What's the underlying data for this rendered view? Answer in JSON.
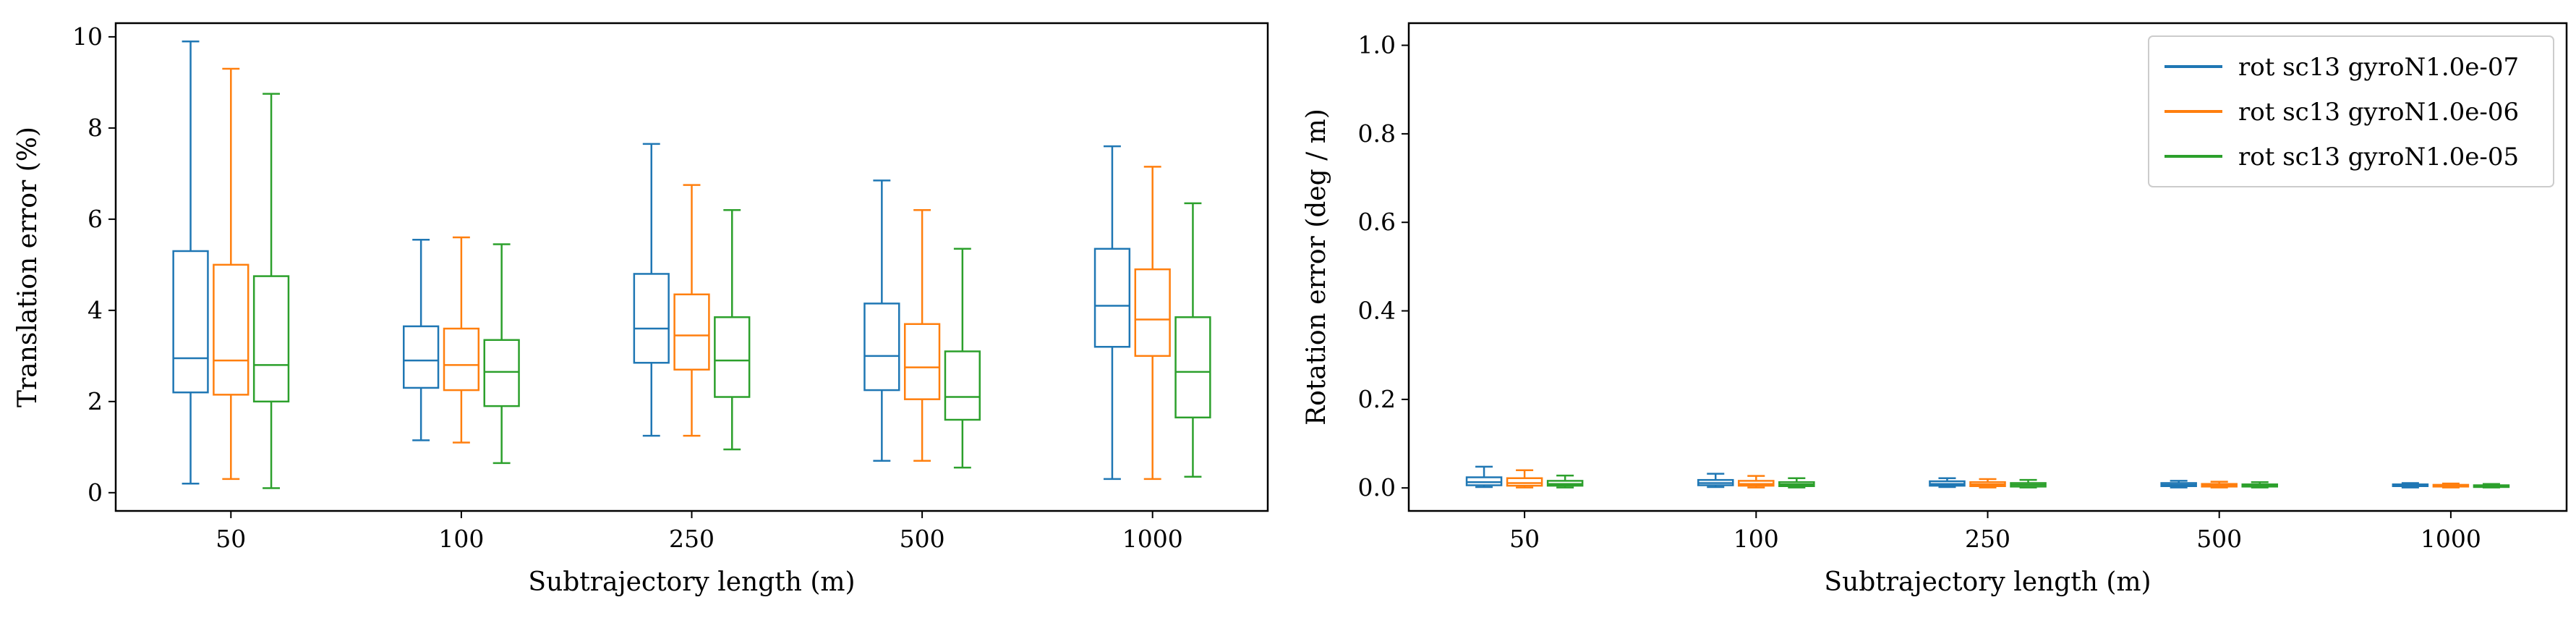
{
  "chart_data": [
    {
      "type": "box",
      "xlabel": "Subtrajectory length (m)",
      "ylabel": "Translation error (%)",
      "categories": [
        "50",
        "100",
        "250",
        "500",
        "1000"
      ],
      "ylim": [
        -0.4,
        10.3
      ],
      "yticks": [
        0,
        2,
        4,
        6,
        8,
        10
      ],
      "legend": null,
      "series": [
        {
          "name": "rot sc13 gyroN1.0e-07",
          "color": "#1f77b4",
          "boxes": [
            {
              "whislo": 0.2,
              "q1": 2.2,
              "med": 2.95,
              "q3": 5.3,
              "whishi": 9.9
            },
            {
              "whislo": 1.15,
              "q1": 2.3,
              "med": 2.9,
              "q3": 3.65,
              "whishi": 5.55
            },
            {
              "whislo": 1.25,
              "q1": 2.85,
              "med": 3.6,
              "q3": 4.8,
              "whishi": 7.65
            },
            {
              "whislo": 0.7,
              "q1": 2.25,
              "med": 3.0,
              "q3": 4.15,
              "whishi": 6.85
            },
            {
              "whislo": 0.3,
              "q1": 3.2,
              "med": 4.1,
              "q3": 5.35,
              "whishi": 7.6
            }
          ]
        },
        {
          "name": "rot sc13 gyroN1.0e-06",
          "color": "#ff7f0e",
          "boxes": [
            {
              "whislo": 0.3,
              "q1": 2.15,
              "med": 2.9,
              "q3": 5.0,
              "whishi": 9.3
            },
            {
              "whislo": 1.1,
              "q1": 2.25,
              "med": 2.8,
              "q3": 3.6,
              "whishi": 5.6
            },
            {
              "whislo": 1.25,
              "q1": 2.7,
              "med": 3.45,
              "q3": 4.35,
              "whishi": 6.75
            },
            {
              "whislo": 0.7,
              "q1": 2.05,
              "med": 2.75,
              "q3": 3.7,
              "whishi": 6.2
            },
            {
              "whislo": 0.3,
              "q1": 3.0,
              "med": 3.8,
              "q3": 4.9,
              "whishi": 7.15
            }
          ]
        },
        {
          "name": "rot sc13 gyroN1.0e-05",
          "color": "#2ca02c",
          "boxes": [
            {
              "whislo": 0.1,
              "q1": 2.0,
              "med": 2.8,
              "q3": 4.75,
              "whishi": 8.75
            },
            {
              "whislo": 0.65,
              "q1": 1.9,
              "med": 2.65,
              "q3": 3.35,
              "whishi": 5.45
            },
            {
              "whislo": 0.95,
              "q1": 2.1,
              "med": 2.9,
              "q3": 3.85,
              "whishi": 6.2
            },
            {
              "whislo": 0.55,
              "q1": 1.6,
              "med": 2.1,
              "q3": 3.1,
              "whishi": 5.35
            },
            {
              "whislo": 0.35,
              "q1": 1.65,
              "med": 2.65,
              "q3": 3.85,
              "whishi": 6.35
            }
          ]
        }
      ]
    },
    {
      "type": "box",
      "xlabel": "Subtrajectory length (m)",
      "ylabel": "Rotation error (deg / m)",
      "categories": [
        "50",
        "100",
        "250",
        "500",
        "1000"
      ],
      "ylim": [
        -0.052,
        1.05
      ],
      "yticks": [
        0.0,
        0.2,
        0.4,
        0.6,
        0.8,
        1.0
      ],
      "legend": "top-right",
      "series": [
        {
          "name": "rot sc13 gyroN1.0e-07",
          "color": "#1f77b4",
          "boxes": [
            {
              "whislo": 0.002,
              "q1": 0.006,
              "med": 0.013,
              "q3": 0.024,
              "whishi": 0.048
            },
            {
              "whislo": 0.002,
              "q1": 0.006,
              "med": 0.011,
              "q3": 0.018,
              "whishi": 0.032
            },
            {
              "whislo": 0.002,
              "q1": 0.005,
              "med": 0.009,
              "q3": 0.015,
              "whishi": 0.022
            },
            {
              "whislo": 0.001,
              "q1": 0.004,
              "med": 0.007,
              "q3": 0.011,
              "whishi": 0.016
            },
            {
              "whislo": 0.001,
              "q1": 0.004,
              "med": 0.006,
              "q3": 0.008,
              "whishi": 0.011
            }
          ]
        },
        {
          "name": "rot sc13 gyroN1.0e-06",
          "color": "#ff7f0e",
          "boxes": [
            {
              "whislo": 0.001,
              "q1": 0.005,
              "med": 0.011,
              "q3": 0.022,
              "whishi": 0.04
            },
            {
              "whislo": 0.001,
              "q1": 0.005,
              "med": 0.009,
              "q3": 0.016,
              "whishi": 0.027
            },
            {
              "whislo": 0.001,
              "q1": 0.004,
              "med": 0.008,
              "q3": 0.013,
              "whishi": 0.02
            },
            {
              "whislo": 0.001,
              "q1": 0.003,
              "med": 0.006,
              "q3": 0.009,
              "whishi": 0.014
            },
            {
              "whislo": 0.001,
              "q1": 0.003,
              "med": 0.005,
              "q3": 0.007,
              "whishi": 0.01
            }
          ]
        },
        {
          "name": "rot sc13 gyroN1.0e-05",
          "color": "#2ca02c",
          "boxes": [
            {
              "whislo": 0.001,
              "q1": 0.005,
              "med": 0.009,
              "q3": 0.016,
              "whishi": 0.028
            },
            {
              "whislo": 0.001,
              "q1": 0.004,
              "med": 0.008,
              "q3": 0.013,
              "whishi": 0.022
            },
            {
              "whislo": 0.001,
              "q1": 0.003,
              "med": 0.007,
              "q3": 0.011,
              "whishi": 0.018
            },
            {
              "whislo": 0.001,
              "q1": 0.003,
              "med": 0.005,
              "q3": 0.008,
              "whishi": 0.013
            },
            {
              "whislo": 0.001,
              "q1": 0.002,
              "med": 0.004,
              "q3": 0.006,
              "whishi": 0.009
            }
          ]
        }
      ]
    }
  ]
}
